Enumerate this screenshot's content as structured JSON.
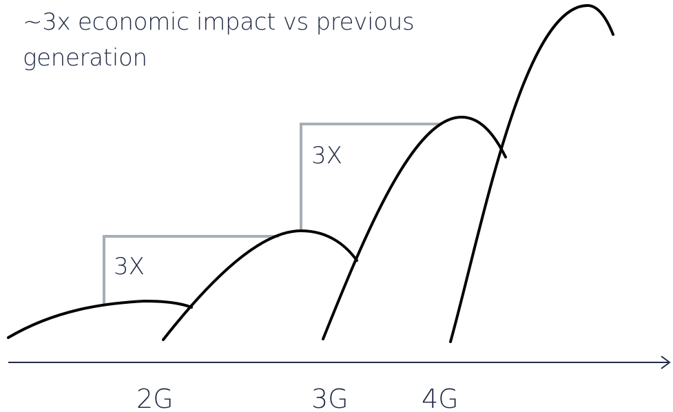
{
  "title": "~3x economic impact vs previous generation",
  "multipliers": [
    {
      "label": "3X",
      "from": "2G",
      "to": "3G"
    },
    {
      "label": "3X",
      "from": "3G",
      "to": "4G"
    }
  ],
  "axis": {
    "ticks": [
      "2G",
      "3G",
      "4G"
    ]
  },
  "colors": {
    "curve": "#000000",
    "step": "#a6adb6",
    "text": "#1f2a44",
    "axis": "#1f2a44"
  }
}
